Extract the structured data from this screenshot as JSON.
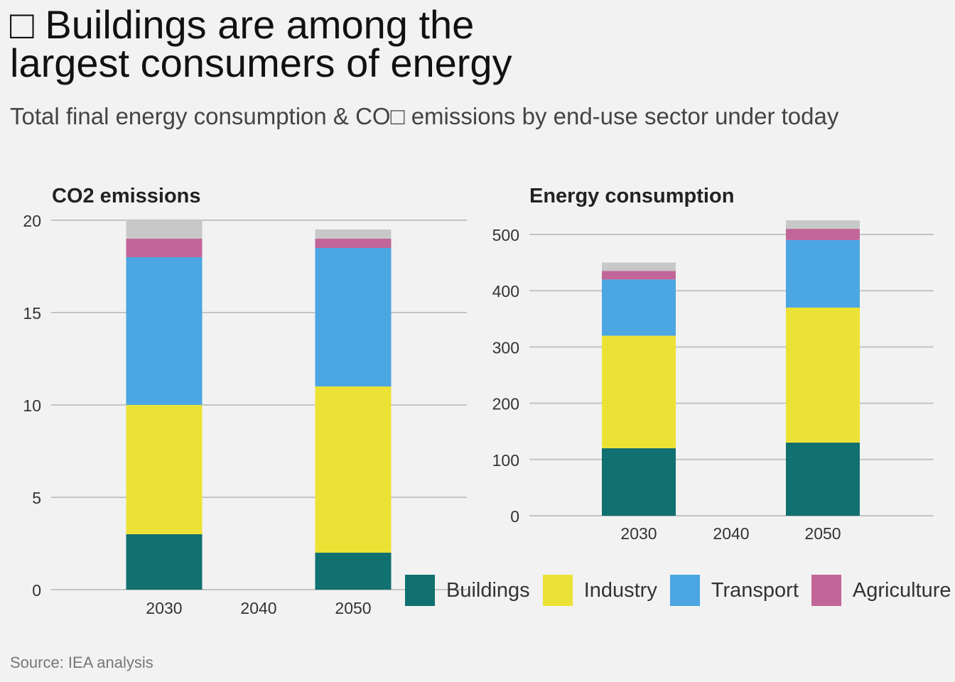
{
  "header": {
    "title_line1": "□ Buildings are among the",
    "title_line2": "largest consumers of energy",
    "subtitle": "Total final energy consumption & CO□ emissions by end-use sector under today"
  },
  "source": "Source: IEA analysis",
  "legend": [
    {
      "name": "Buildings",
      "color": "#117070"
    },
    {
      "name": "Industry",
      "color": "#ece236"
    },
    {
      "name": "Transport",
      "color": "#4ba6e2"
    },
    {
      "name": "Agriculture",
      "color": "#c26599"
    }
  ],
  "chart_data": [
    {
      "type": "bar",
      "stacked": true,
      "title": "CO2 emissions",
      "x_ticks": [
        "2030",
        "2040",
        "2050"
      ],
      "categories": [
        "2030",
        "2050"
      ],
      "series": [
        {
          "name": "Buildings",
          "values": [
            3,
            2
          ],
          "color": "#117070"
        },
        {
          "name": "Industry",
          "values": [
            7,
            9
          ],
          "color": "#ece236"
        },
        {
          "name": "Transport",
          "values": [
            8,
            7.5
          ],
          "color": "#4ba6e2"
        },
        {
          "name": "Agriculture",
          "values": [
            1,
            0.5
          ],
          "color": "#c26599"
        },
        {
          "values": [
            1,
            0.5
          ],
          "color": "#c8c8c8"
        }
      ],
      "ylim": [
        0,
        20
      ],
      "y_ticks": [
        0,
        5,
        10,
        15,
        20
      ],
      "grid": true
    },
    {
      "type": "bar",
      "stacked": true,
      "title": "Energy consumption",
      "x_ticks": [
        "2030",
        "2040",
        "2050"
      ],
      "categories": [
        "2030",
        "2050"
      ],
      "series": [
        {
          "name": "Buildings",
          "values": [
            120,
            130
          ],
          "color": "#117070"
        },
        {
          "name": "Industry",
          "values": [
            200,
            240
          ],
          "color": "#ece236"
        },
        {
          "name": "Transport",
          "values": [
            100,
            120
          ],
          "color": "#4ba6e2"
        },
        {
          "name": "Agriculture",
          "values": [
            15,
            20
          ],
          "color": "#c26599"
        },
        {
          "values": [
            15,
            15
          ],
          "color": "#c8c8c8"
        }
      ],
      "ylim": [
        0,
        500
      ],
      "y_ticks": [
        0,
        100,
        200,
        300,
        400,
        500
      ],
      "grid": true
    }
  ]
}
